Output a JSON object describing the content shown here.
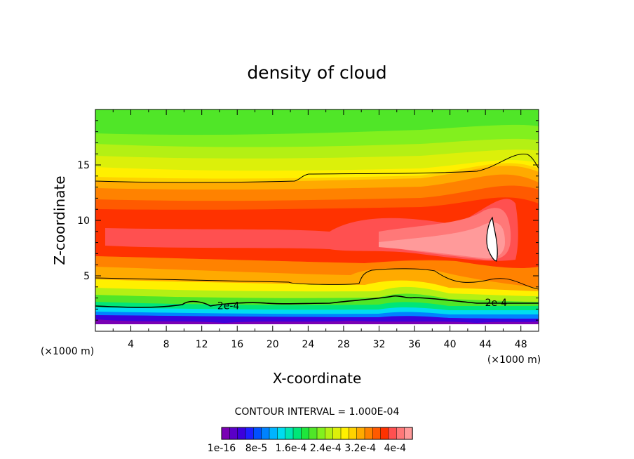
{
  "chart_data": {
    "type": "heatmap",
    "title": "density of cloud",
    "xlabel": "X-coordinate",
    "ylabel": "Z-coordinate",
    "x_unit": "(×1000 m)",
    "y_unit": "(×1000 m)",
    "xlim": [
      0,
      50
    ],
    "ylim": [
      0,
      20
    ],
    "xticks": [
      4,
      8,
      12,
      16,
      20,
      24,
      28,
      32,
      36,
      40,
      44,
      48
    ],
    "yticks": [
      5,
      10,
      15
    ],
    "contour_interval_text": "CONTOUR INTERVAL = 1.000E-04",
    "contour_labels": [
      {
        "text": "2e-4",
        "x": 15,
        "z": 2.3
      },
      {
        "text": "2e-4",
        "x": 45.2,
        "z": 2.6
      }
    ],
    "colorbar": {
      "min": 1e-16,
      "max": 0.00044,
      "labels": [
        "1e-16",
        "8e-5",
        "1.6e-4",
        "2.4e-4",
        "3.2e-4",
        "4e-4"
      ],
      "colors": [
        "#7a00b4",
        "#5a00c8",
        "#3c00dc",
        "#1e1eff",
        "#0050ff",
        "#0082ff",
        "#00b4ff",
        "#00dcf0",
        "#00e6b4",
        "#00e678",
        "#1ee63c",
        "#50e628",
        "#82f01e",
        "#b4f014",
        "#dcf00a",
        "#fff000",
        "#ffd200",
        "#ffaa00",
        "#ff8200",
        "#ff5a00",
        "#ff3200",
        "#ff5050",
        "#ff7878",
        "#ff9a9a"
      ]
    },
    "field": {
      "layers": [
        {
          "level": 0.0004,
          "z_bottom": 6.5,
          "z_top": 7.5,
          "x_start": 32,
          "x_end": 44,
          "color_index": 22
        },
        {
          "level": 0.00044,
          "x": 44.3,
          "z": 8.5,
          "color_index": 23
        }
      ]
    }
  }
}
